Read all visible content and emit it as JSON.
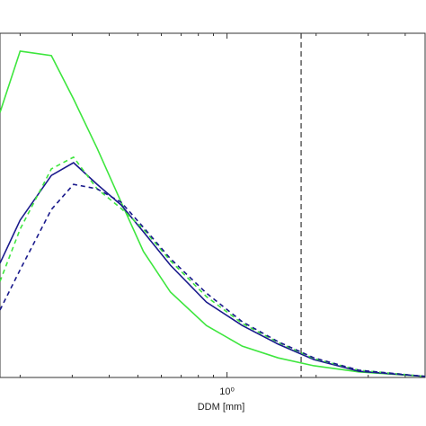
{
  "chart_data": {
    "type": "line",
    "xlabel": "DDM [mm]",
    "xscale": "log",
    "x": [
      0.171,
      0.2,
      0.255,
      0.303,
      0.364,
      0.439,
      0.522,
      0.644,
      0.852,
      1.126,
      1.488,
      1.966,
      2.79,
      4.67
    ],
    "series": [
      {
        "color": "#3ee63e",
        "dash": false,
        "values": [
          0.77,
          0.948,
          0.935,
          0.809,
          0.666,
          0.509,
          0.366,
          0.248,
          0.151,
          0.091,
          0.057,
          0.034,
          0.016,
          0.003
        ]
      },
      {
        "color": "#1a1a8c",
        "dash": false,
        "values": [
          0.332,
          0.457,
          0.587,
          0.624,
          0.561,
          0.501,
          0.423,
          0.326,
          0.219,
          0.151,
          0.097,
          0.052,
          0.018,
          0.003
        ]
      },
      {
        "color": "#3ee63e",
        "dash": true,
        "values": [
          0.279,
          0.431,
          0.606,
          0.64,
          0.548,
          0.491,
          0.431,
          0.339,
          0.235,
          0.157,
          0.102,
          0.055,
          0.021,
          0.003
        ]
      },
      {
        "color": "#1a1a8c",
        "dash": true,
        "values": [
          0.196,
          0.313,
          0.488,
          0.561,
          0.548,
          0.509,
          0.436,
          0.345,
          0.245,
          0.162,
          0.104,
          0.057,
          0.021,
          0.003
        ]
      }
    ],
    "vline": 1.78,
    "xlim": [
      0.171,
      4.67
    ],
    "ylim": [
      0,
      1
    ],
    "xticks": [
      {
        "value": 1,
        "label": "10⁰"
      }
    ],
    "xminorticks": [
      0.2,
      0.3,
      0.4,
      0.5,
      0.6,
      0.7,
      0.8,
      0.9,
      2,
      3,
      4
    ]
  }
}
